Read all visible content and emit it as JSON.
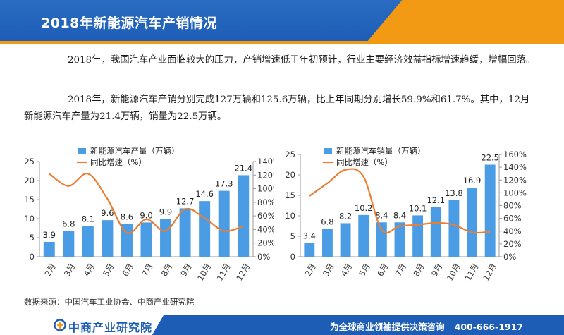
{
  "header": {
    "title": "2018年新能源汽车产销情况"
  },
  "body": {
    "paragraph1": "2018年，我国汽车产业面临较大的压力，产销增速低于年初预计，行业主要经济效益指标增速趋缓，增幅回落。",
    "paragraph2": "2018年，新能源汽车产销分别完成127万辆和125.6万辆，比上年同期分别增长59.9%和61.7%。其中，12月新能源汽车产量为21.4万辆，销量为22.5万辆。"
  },
  "source": "数据来源：中国汽车工业协会、中商产业研究院",
  "footer": {
    "logo": "中商产业研究院",
    "slogan": "为全球商业领袖提供决策咨询",
    "phone": "400-666-1917"
  },
  "colors": {
    "bar": "#4a9de4",
    "line": "#ed7d31",
    "header_blue": "#1d5db6",
    "header_orange": "#f39a14"
  },
  "chart_data": [
    {
      "type": "bar",
      "categories": [
        "2月",
        "3月",
        "4月",
        "5月",
        "6月",
        "7月",
        "8月",
        "9月",
        "10月",
        "11月",
        "12月"
      ],
      "series": [
        {
          "name": "新能源汽车产量（万辆）",
          "type": "bar",
          "axis": "left",
          "values": [
            3.9,
            6.8,
            8.1,
            9.6,
            8.6,
            9.0,
            9.9,
            12.7,
            14.6,
            17.3,
            21.4
          ]
        },
        {
          "name": "同比增速（%）",
          "type": "line",
          "axis": "right",
          "values": [
            1.22,
            1.04,
            1.22,
            0.85,
            0.35,
            0.55,
            0.38,
            0.7,
            0.57,
            0.38,
            0.45
          ]
        }
      ],
      "ylim_left": [
        0,
        25
      ],
      "yticks_left": [
        0,
        5,
        10,
        15,
        20,
        25
      ],
      "ylim_right": [
        0,
        1.4
      ],
      "yticks_right_labels": [
        "0%",
        "20%",
        "40%",
        "60%",
        "80%",
        "100%",
        "120%",
        "140%"
      ]
    },
    {
      "type": "bar",
      "categories": [
        "2月",
        "3月",
        "4月",
        "5月",
        "6月",
        "7月",
        "8月",
        "9月",
        "10月",
        "11月",
        "12月"
      ],
      "series": [
        {
          "name": "新能源汽车销量（万辆）",
          "type": "bar",
          "axis": "left",
          "values": [
            3.4,
            6.8,
            8.2,
            10.2,
            8.4,
            8.4,
            10.1,
            12.1,
            13.8,
            16.9,
            22.5
          ]
        },
        {
          "name": "同比增速（%）",
          "type": "line",
          "axis": "right",
          "values": [
            0.95,
            1.15,
            1.36,
            1.25,
            0.42,
            0.48,
            0.5,
            0.53,
            0.5,
            0.38,
            0.39
          ]
        }
      ],
      "ylim_left": [
        0,
        25
      ],
      "yticks_left": [
        0,
        5,
        10,
        15,
        20,
        25
      ],
      "ylim_right": [
        0,
        1.6
      ],
      "yticks_right_labels": [
        "0%",
        "20%",
        "40%",
        "60%",
        "80%",
        "100%",
        "120%",
        "140%",
        "160%"
      ]
    }
  ]
}
